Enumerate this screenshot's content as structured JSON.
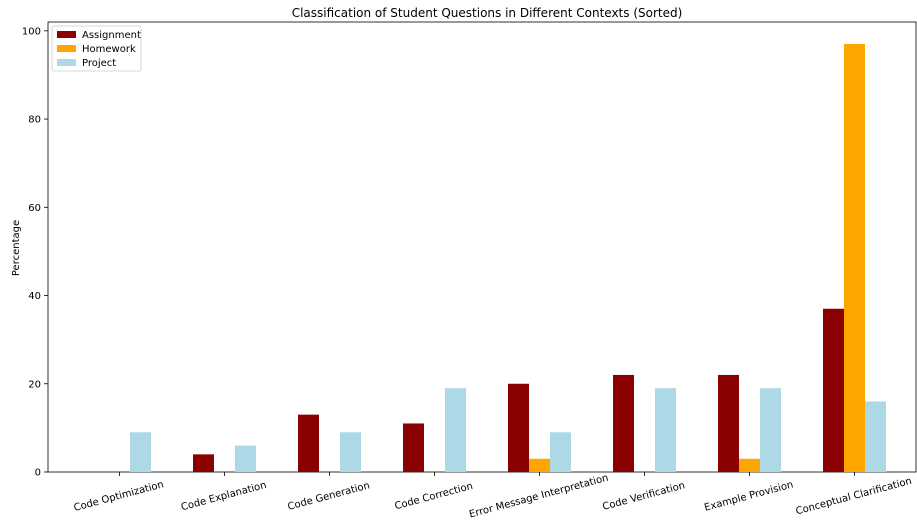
{
  "chart_data": {
    "type": "bar",
    "title": "Classification of Student Questions in Different Contexts (Sorted)",
    "xlabel": "",
    "ylabel": "Percentage",
    "ylim": [
      0,
      102
    ],
    "yticks": [
      0,
      20,
      40,
      60,
      80,
      100
    ],
    "grid": false,
    "legend_position": "top-left",
    "categories": [
      "Code Optimization",
      "Code Explanation",
      "Code Generation",
      "Code Correction",
      "Error Message Interpretation",
      "Code Verification",
      "Example Provision",
      "Conceptual Clarification"
    ],
    "series": [
      {
        "name": "Assignment",
        "color": "#8b0000",
        "values": [
          0,
          4,
          13,
          11,
          20,
          22,
          22,
          37
        ]
      },
      {
        "name": "Homework",
        "color": "#ffa500",
        "values": [
          0,
          0,
          0,
          0,
          3,
          0,
          3,
          97
        ]
      },
      {
        "name": "Project",
        "color": "#add8e6",
        "values": [
          9,
          6,
          9,
          19,
          9,
          19,
          19,
          16
        ]
      }
    ]
  }
}
